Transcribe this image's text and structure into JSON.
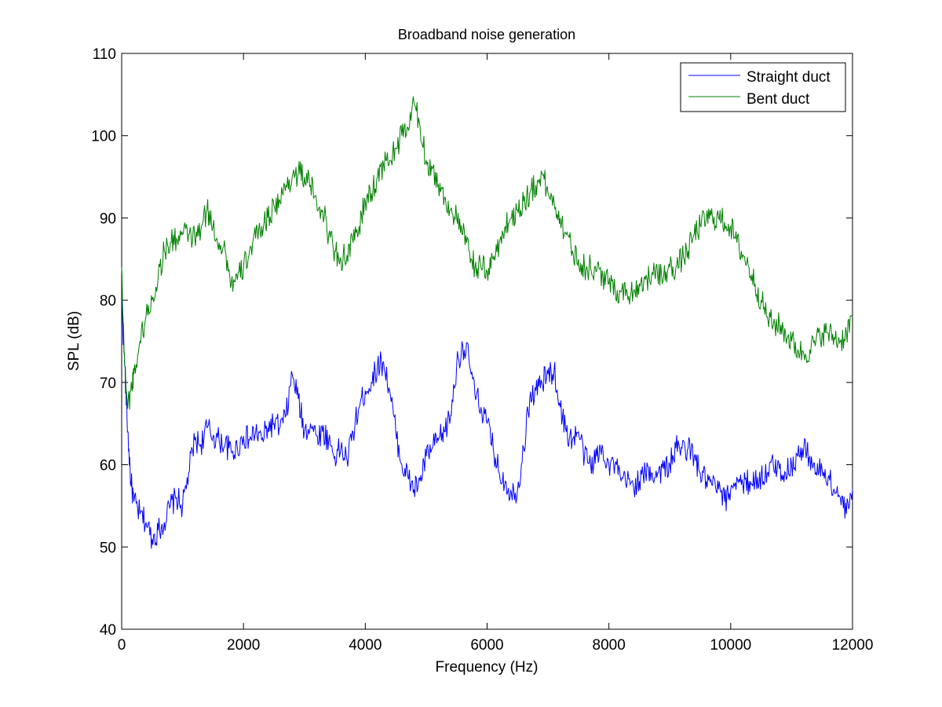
{
  "chart_data": {
    "type": "line",
    "title": "Broadband noise generation",
    "xlabel": "Frequency (Hz)",
    "ylabel": "SPL (dB)",
    "xlim": [
      0,
      12000
    ],
    "ylim": [
      40,
      110
    ],
    "xticks": [
      0,
      2000,
      4000,
      6000,
      8000,
      10000,
      12000
    ],
    "yticks": [
      40,
      50,
      60,
      70,
      80,
      90,
      100,
      110
    ],
    "grid": false,
    "legend_position": "top-right",
    "series": [
      {
        "name": "Straight duct",
        "color": "#0000ff",
        "points": [
          [
            0,
            80
          ],
          [
            50,
            72
          ],
          [
            100,
            64
          ],
          [
            150,
            58
          ],
          [
            200,
            55.5
          ],
          [
            300,
            54
          ],
          [
            400,
            53
          ],
          [
            500,
            51
          ],
          [
            600,
            52
          ],
          [
            700,
            53
          ],
          [
            800,
            55
          ],
          [
            900,
            56
          ],
          [
            1000,
            55
          ],
          [
            1100,
            59
          ],
          [
            1200,
            63
          ],
          [
            1300,
            62.5
          ],
          [
            1400,
            64.5
          ],
          [
            1500,
            63.5
          ],
          [
            1600,
            63
          ],
          [
            1700,
            62.5
          ],
          [
            1800,
            61.5
          ],
          [
            1900,
            62
          ],
          [
            2000,
            63.5
          ],
          [
            2100,
            63
          ],
          [
            2200,
            64
          ],
          [
            2300,
            63
          ],
          [
            2400,
            64.5
          ],
          [
            2500,
            65
          ],
          [
            2600,
            64.5
          ],
          [
            2700,
            66
          ],
          [
            2800,
            71
          ],
          [
            2900,
            68
          ],
          [
            3000,
            64
          ],
          [
            3100,
            65
          ],
          [
            3200,
            63.5
          ],
          [
            3300,
            64
          ],
          [
            3400,
            63
          ],
          [
            3500,
            61
          ],
          [
            3600,
            62
          ],
          [
            3700,
            60.5
          ],
          [
            3800,
            64
          ],
          [
            3900,
            67
          ],
          [
            4000,
            69
          ],
          [
            4100,
            70
          ],
          [
            4200,
            72
          ],
          [
            4300,
            72.5
          ],
          [
            4400,
            69
          ],
          [
            4500,
            64
          ],
          [
            4600,
            60
          ],
          [
            4700,
            58.5
          ],
          [
            4800,
            57
          ],
          [
            4900,
            58
          ],
          [
            5000,
            61
          ],
          [
            5100,
            62
          ],
          [
            5200,
            63
          ],
          [
            5300,
            64
          ],
          [
            5400,
            66
          ],
          [
            5500,
            72
          ],
          [
            5600,
            74.5
          ],
          [
            5700,
            73
          ],
          [
            5800,
            68.5
          ],
          [
            5900,
            67
          ],
          [
            6000,
            65
          ],
          [
            6100,
            62
          ],
          [
            6200,
            59
          ],
          [
            6300,
            58
          ],
          [
            6400,
            56.5
          ],
          [
            6500,
            57
          ],
          [
            6600,
            62
          ],
          [
            6700,
            68
          ],
          [
            6800,
            69
          ],
          [
            6900,
            70
          ],
          [
            7000,
            71
          ],
          [
            7100,
            71.5
          ],
          [
            7200,
            67
          ],
          [
            7300,
            64
          ],
          [
            7400,
            63
          ],
          [
            7500,
            64
          ],
          [
            7600,
            61
          ],
          [
            7700,
            60
          ],
          [
            7800,
            61
          ],
          [
            7900,
            62
          ],
          [
            8000,
            60
          ],
          [
            8100,
            60
          ],
          [
            8200,
            58
          ],
          [
            8300,
            58
          ],
          [
            8400,
            57.5
          ],
          [
            8500,
            58
          ],
          [
            8600,
            59
          ],
          [
            8700,
            59
          ],
          [
            8800,
            59
          ],
          [
            8900,
            59.5
          ],
          [
            9000,
            60
          ],
          [
            9100,
            62
          ],
          [
            9200,
            62
          ],
          [
            9300,
            62
          ],
          [
            9400,
            61
          ],
          [
            9500,
            59
          ],
          [
            9600,
            58
          ],
          [
            9700,
            57.5
          ],
          [
            9800,
            57
          ],
          [
            9900,
            55.5
          ],
          [
            10000,
            57
          ],
          [
            10100,
            58.5
          ],
          [
            10200,
            57.5
          ],
          [
            10300,
            58
          ],
          [
            10400,
            58
          ],
          [
            10500,
            58.5
          ],
          [
            10600,
            59
          ],
          [
            10700,
            60
          ],
          [
            10800,
            59.5
          ],
          [
            10900,
            59
          ],
          [
            11000,
            60
          ],
          [
            11100,
            61
          ],
          [
            11200,
            62
          ],
          [
            11300,
            61
          ],
          [
            11400,
            59
          ],
          [
            11500,
            59.5
          ],
          [
            11600,
            58.5
          ],
          [
            11700,
            57
          ],
          [
            11800,
            56
          ],
          [
            11900,
            54
          ],
          [
            12000,
            57
          ]
        ]
      },
      {
        "name": "Bent duct",
        "color": "#008000",
        "points": [
          [
            0,
            84
          ],
          [
            50,
            72
          ],
          [
            100,
            67
          ],
          [
            150,
            69
          ],
          [
            200,
            71
          ],
          [
            300,
            75
          ],
          [
            400,
            78
          ],
          [
            500,
            80
          ],
          [
            600,
            83
          ],
          [
            700,
            86
          ],
          [
            800,
            87
          ],
          [
            900,
            87.5
          ],
          [
            1000,
            88
          ],
          [
            1100,
            88
          ],
          [
            1200,
            87.5
          ],
          [
            1300,
            88.5
          ],
          [
            1400,
            91
          ],
          [
            1500,
            89
          ],
          [
            1600,
            87
          ],
          [
            1700,
            86
          ],
          [
            1800,
            82
          ],
          [
            1900,
            82.5
          ],
          [
            2000,
            84
          ],
          [
            2100,
            86
          ],
          [
            2200,
            87.5
          ],
          [
            2300,
            89
          ],
          [
            2400,
            90
          ],
          [
            2500,
            91.5
          ],
          [
            2600,
            92
          ],
          [
            2700,
            94
          ],
          [
            2800,
            95
          ],
          [
            2900,
            95.5
          ],
          [
            3000,
            95
          ],
          [
            3100,
            94
          ],
          [
            3200,
            92
          ],
          [
            3300,
            91
          ],
          [
            3400,
            88
          ],
          [
            3500,
            86
          ],
          [
            3600,
            85
          ],
          [
            3700,
            85.5
          ],
          [
            3800,
            87
          ],
          [
            3900,
            89
          ],
          [
            4000,
            92
          ],
          [
            4100,
            93
          ],
          [
            4200,
            95
          ],
          [
            4300,
            96.5
          ],
          [
            4400,
            97
          ],
          [
            4500,
            98.5
          ],
          [
            4600,
            100
          ],
          [
            4700,
            101
          ],
          [
            4800,
            104
          ],
          [
            4900,
            101
          ],
          [
            5000,
            97
          ],
          [
            5100,
            96
          ],
          [
            5200,
            94
          ],
          [
            5300,
            92.5
          ],
          [
            5400,
            91
          ],
          [
            5500,
            90
          ],
          [
            5600,
            88
          ],
          [
            5700,
            86
          ],
          [
            5800,
            84
          ],
          [
            5900,
            84
          ],
          [
            6000,
            83.5
          ],
          [
            6100,
            85
          ],
          [
            6200,
            87
          ],
          [
            6300,
            89
          ],
          [
            6400,
            90
          ],
          [
            6500,
            91
          ],
          [
            6600,
            92
          ],
          [
            6700,
            93
          ],
          [
            6800,
            94
          ],
          [
            6900,
            95.5
          ],
          [
            7000,
            93
          ],
          [
            7100,
            92
          ],
          [
            7200,
            90
          ],
          [
            7300,
            88
          ],
          [
            7400,
            86
          ],
          [
            7500,
            85
          ],
          [
            7600,
            84
          ],
          [
            7700,
            84
          ],
          [
            7800,
            83.5
          ],
          [
            7900,
            83
          ],
          [
            8000,
            82
          ],
          [
            8100,
            81.5
          ],
          [
            8200,
            81
          ],
          [
            8300,
            81
          ],
          [
            8400,
            81
          ],
          [
            8500,
            82
          ],
          [
            8600,
            82.5
          ],
          [
            8700,
            83
          ],
          [
            8800,
            83
          ],
          [
            8900,
            83
          ],
          [
            9000,
            84
          ],
          [
            9100,
            84
          ],
          [
            9200,
            85
          ],
          [
            9300,
            86
          ],
          [
            9400,
            88
          ],
          [
            9500,
            89
          ],
          [
            9600,
            90
          ],
          [
            9700,
            90
          ],
          [
            9800,
            90
          ],
          [
            9900,
            89.5
          ],
          [
            10000,
            89
          ],
          [
            10100,
            87
          ],
          [
            10200,
            85.5
          ],
          [
            10300,
            84
          ],
          [
            10400,
            82
          ],
          [
            10500,
            80
          ],
          [
            10600,
            78
          ],
          [
            10700,
            77
          ],
          [
            10800,
            77
          ],
          [
            10900,
            76
          ],
          [
            11000,
            75
          ],
          [
            11100,
            74
          ],
          [
            11200,
            73.5
          ],
          [
            11300,
            74
          ],
          [
            11400,
            75
          ],
          [
            11500,
            76
          ],
          [
            11600,
            76
          ],
          [
            11700,
            75.5
          ],
          [
            11800,
            75
          ],
          [
            11900,
            76
          ],
          [
            12000,
            78
          ]
        ]
      }
    ]
  }
}
